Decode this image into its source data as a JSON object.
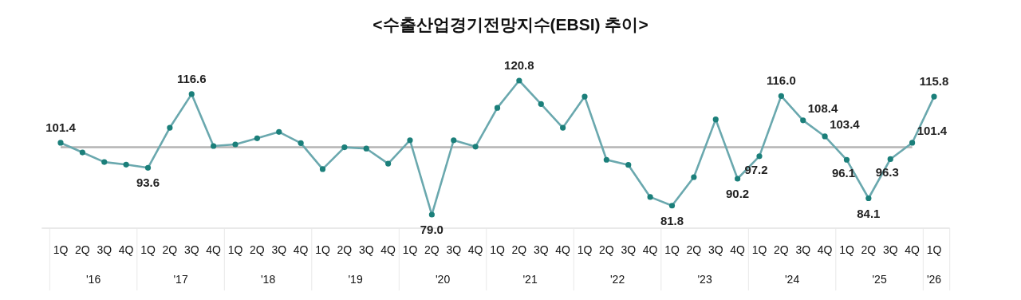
{
  "chart_data": {
    "type": "line",
    "title": "<수출산업경기전망지수(EBSI) 추이>",
    "categories": [
      "1Q",
      "2Q",
      "3Q",
      "4Q",
      "1Q",
      "2Q",
      "3Q",
      "4Q",
      "1Q",
      "2Q",
      "3Q",
      "4Q",
      "1Q",
      "2Q",
      "3Q",
      "4Q",
      "1Q",
      "2Q",
      "3Q",
      "4Q",
      "1Q",
      "2Q",
      "3Q",
      "4Q",
      "1Q",
      "2Q",
      "3Q",
      "4Q",
      "1Q",
      "2Q",
      "3Q",
      "4Q",
      "1Q",
      "2Q",
      "3Q",
      "4Q",
      "1Q",
      "2Q",
      "3Q",
      "4Q",
      "1Q"
    ],
    "series": [
      {
        "color": "#6aa8ae",
        "values": [
          101.4,
          98.4,
          95.4,
          94.6,
          93.6,
          106.1,
          116.6,
          100.4,
          100.9,
          102.8,
          104.8,
          101.3,
          93.2,
          100.0,
          99.6,
          94.9,
          102.2,
          79.0,
          102.2,
          100.2,
          112.3,
          120.8,
          113.5,
          106.1,
          115.8,
          96.1,
          94.5,
          84.5,
          81.8,
          90.7,
          108.7,
          90.2,
          97.2,
          116.0,
          108.4,
          103.4,
          96.1,
          84.1,
          96.3,
          101.4,
          115.8
        ],
        "value_labels": [
          "101.4",
          null,
          null,
          null,
          "93.6",
          null,
          "116.6",
          null,
          null,
          null,
          null,
          null,
          null,
          null,
          null,
          null,
          null,
          "79.0",
          null,
          null,
          null,
          "120.8",
          null,
          null,
          null,
          null,
          null,
          null,
          "81.8",
          null,
          null,
          "90.2",
          "97.2",
          "116.0",
          "108.4",
          "103.4",
          "96.1",
          "84.1",
          "96.3",
          "101.4",
          "115.8"
        ]
      }
    ],
    "tick_labels": "x",
    "marker": "circle",
    "ref_lines": [
      {
        "axis": "y",
        "value": 100,
        "color": "#b4b4b4"
      }
    ],
    "annotations": [
      "'16",
      "'17",
      "'18",
      "'19",
      "'20",
      "'21",
      "'22",
      "'23",
      "'24",
      "'25",
      "'26"
    ]
  }
}
